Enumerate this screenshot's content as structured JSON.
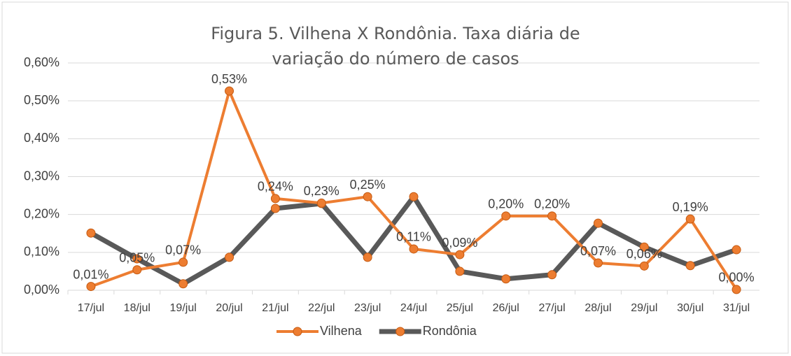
{
  "chart_data": {
    "type": "line",
    "title": "Figura 5. Vilhena X Rondônia. Taxa diária de variação do número de casos",
    "categories": [
      "17/jul",
      "18/jul",
      "19/jul",
      "20/jul",
      "21/jul",
      "22/jul",
      "23/jul",
      "24/jul",
      "25/jul",
      "26/jul",
      "27/jul",
      "28/jul",
      "29/jul",
      "30/jul",
      "31/jul"
    ],
    "series": [
      {
        "name": "Vilhena",
        "color": "#ed7d31",
        "values": [
          0.01,
          0.054,
          0.074,
          0.526,
          0.242,
          0.23,
          0.247,
          0.109,
          0.094,
          0.196,
          0.196,
          0.072,
          0.064,
          0.188,
          0.002
        ],
        "value_labels": [
          "0,01%",
          "0,05%",
          "0,07%",
          "0,53%",
          "0,24%",
          "0,23%",
          "0,25%",
          "0,11%",
          "0,09%",
          "0,20%",
          "0,20%",
          "0,07%",
          "0,06%",
          "0,19%",
          "0,00%"
        ]
      },
      {
        "name": "Rondônia",
        "color": "#595959",
        "values": [
          0.151,
          0.083,
          0.017,
          0.087,
          0.216,
          0.229,
          0.087,
          0.247,
          0.05,
          0.03,
          0.041,
          0.177,
          0.114,
          0.065,
          0.107
        ]
      }
    ],
    "marker_color": "#ed7d31",
    "ylim": [
      0,
      0.6
    ],
    "yticks": [
      {
        "value": 0,
        "label": "0,00%"
      },
      {
        "value": 0.1,
        "label": "0,10%"
      },
      {
        "value": 0.2,
        "label": "0,20%"
      },
      {
        "value": 0.3,
        "label": "0,30%"
      },
      {
        "value": 0.4,
        "label": "0,40%"
      },
      {
        "value": 0.5,
        "label": "0,50%"
      },
      {
        "value": 0.6,
        "label": "0,60%"
      }
    ],
    "grid": true,
    "legend": "bottom"
  }
}
